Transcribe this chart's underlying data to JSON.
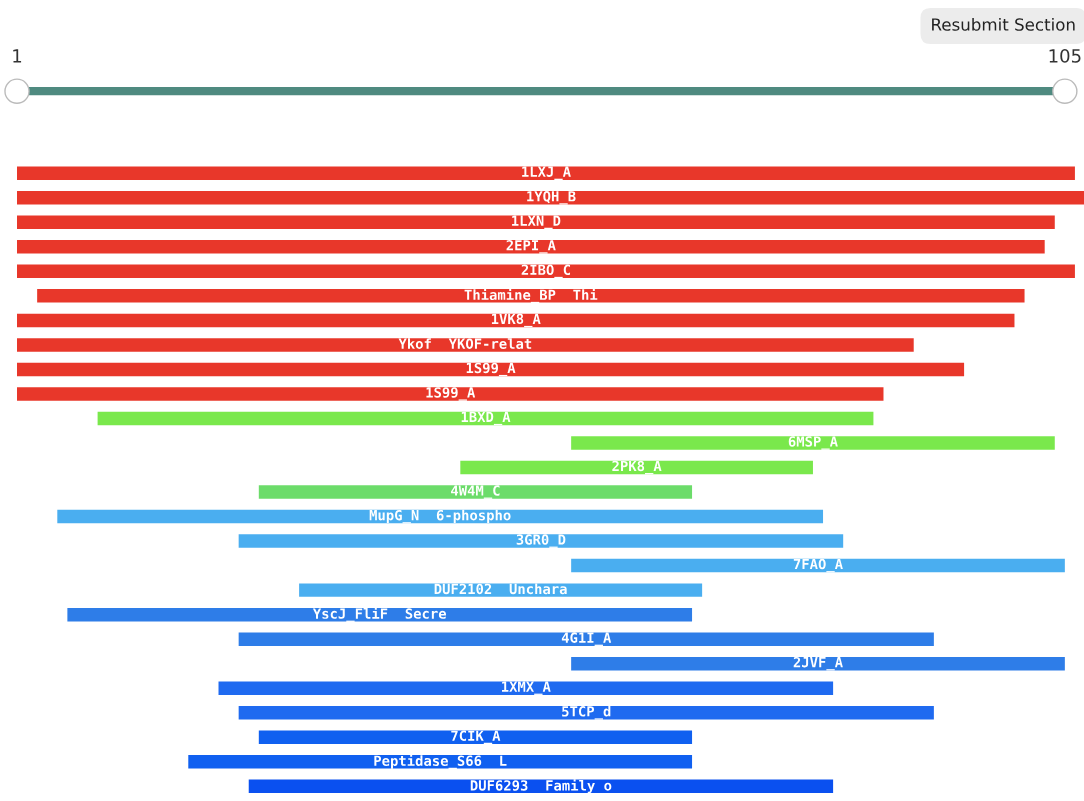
{
  "chart_data": {
    "type": "bar",
    "orientation": "horizontal",
    "categories": [
      "1LXJ_A",
      "1YQH_B",
      "1LXN_D",
      "2EPI_A",
      "2IBO_C",
      "Thiamine_BP  Thi",
      "1VK8_A",
      "Ykof  YKOF-relat",
      "1S99_A",
      "1S99_A",
      "1BXD_A",
      "6MSP_A",
      "2PK8_A",
      "4W4M_C",
      "MupG_N  6-phospho",
      "3GR0_D",
      "7FAO_A",
      "DUF2102  Unchara",
      "YscJ_FliF  Secre",
      "4G1I_A",
      "2JVF_A",
      "1XMX_A",
      "5TCP_d",
      "7CIK_A",
      "Peptidase_S66  L",
      "DUF6293  Family o"
    ],
    "base": [
      1,
      1,
      1,
      1,
      1,
      3,
      1,
      1,
      1,
      1,
      9,
      56,
      45,
      25,
      5,
      23,
      56,
      29,
      6,
      23,
      56,
      21,
      23,
      25,
      18,
      24
    ],
    "values": [
      105,
      106,
      103,
      102,
      105,
      98,
      99,
      89,
      94,
      86,
      77,
      48,
      35,
      43,
      76,
      60,
      49,
      40,
      62,
      69,
      49,
      61,
      69,
      43,
      50,
      58
    ],
    "colors": [
      "#e8372a",
      "#e8372a",
      "#e8372a",
      "#e8372a",
      "#e8372a",
      "#e8372a",
      "#e8372a",
      "#e8372a",
      "#e8372a",
      "#e8372a",
      "#7ae84c",
      "#7ae84c",
      "#7ae84c",
      "#6cdc6a",
      "#4aaef0",
      "#4aaef0",
      "#4aaef0",
      "#4aaef0",
      "#2e7de8",
      "#2e7de8",
      "#2e7de8",
      "#1f6af0",
      "#1f6af0",
      "#1060f0",
      "#1060f0",
      "#0a50f0"
    ],
    "xlim": [
      1,
      107
    ],
    "xticks": [
      1,
      105
    ],
    "annotations": [
      "Resubmit Section"
    ]
  }
}
